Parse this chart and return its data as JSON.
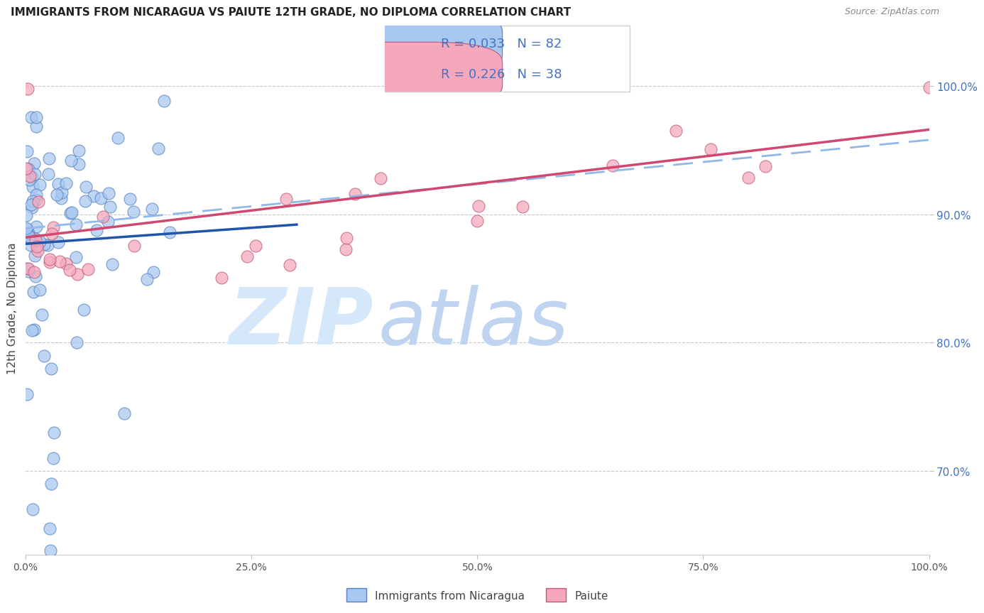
{
  "title": "IMMIGRANTS FROM NICARAGUA VS PAIUTE 12TH GRADE, NO DIPLOMA CORRELATION CHART",
  "source": "Source: ZipAtlas.com",
  "ylabel": "12th Grade, No Diploma",
  "y_tick_labels": [
    "70.0%",
    "80.0%",
    "90.0%",
    "100.0%"
  ],
  "y_tick_values": [
    0.7,
    0.8,
    0.9,
    1.0
  ],
  "color_blue_fill": "#A8C8F0",
  "color_blue_edge": "#5580C0",
  "color_pink_fill": "#F5A8BC",
  "color_pink_edge": "#C05878",
  "color_blue_line": "#2255AA",
  "color_pink_line": "#D04870",
  "color_dashed": "#90B8E8",
  "color_text_axis_y": "#4472C4",
  "color_grid": "#C8C8C8",
  "color_title": "#222222",
  "color_source": "#888888",
  "legend_blue_text": "R = 0.033   N = 82",
  "legend_pink_text": "R = 0.226   N = 38",
  "bottom_label1": "Immigrants from Nicaragua",
  "bottom_label2": "Paiute",
  "xlim": [
    0.0,
    1.0
  ],
  "ylim": [
    0.635,
    1.02
  ],
  "blue_trend_x": [
    0.0,
    0.3
  ],
  "blue_trend_y": [
    0.878,
    0.893
  ],
  "pink_trend_x": [
    0.0,
    1.0
  ],
  "pink_trend_y": [
    0.882,
    0.965
  ],
  "dashed_trend_x": [
    0.0,
    1.0
  ],
  "dashed_trend_y": [
    0.89,
    0.96
  ]
}
